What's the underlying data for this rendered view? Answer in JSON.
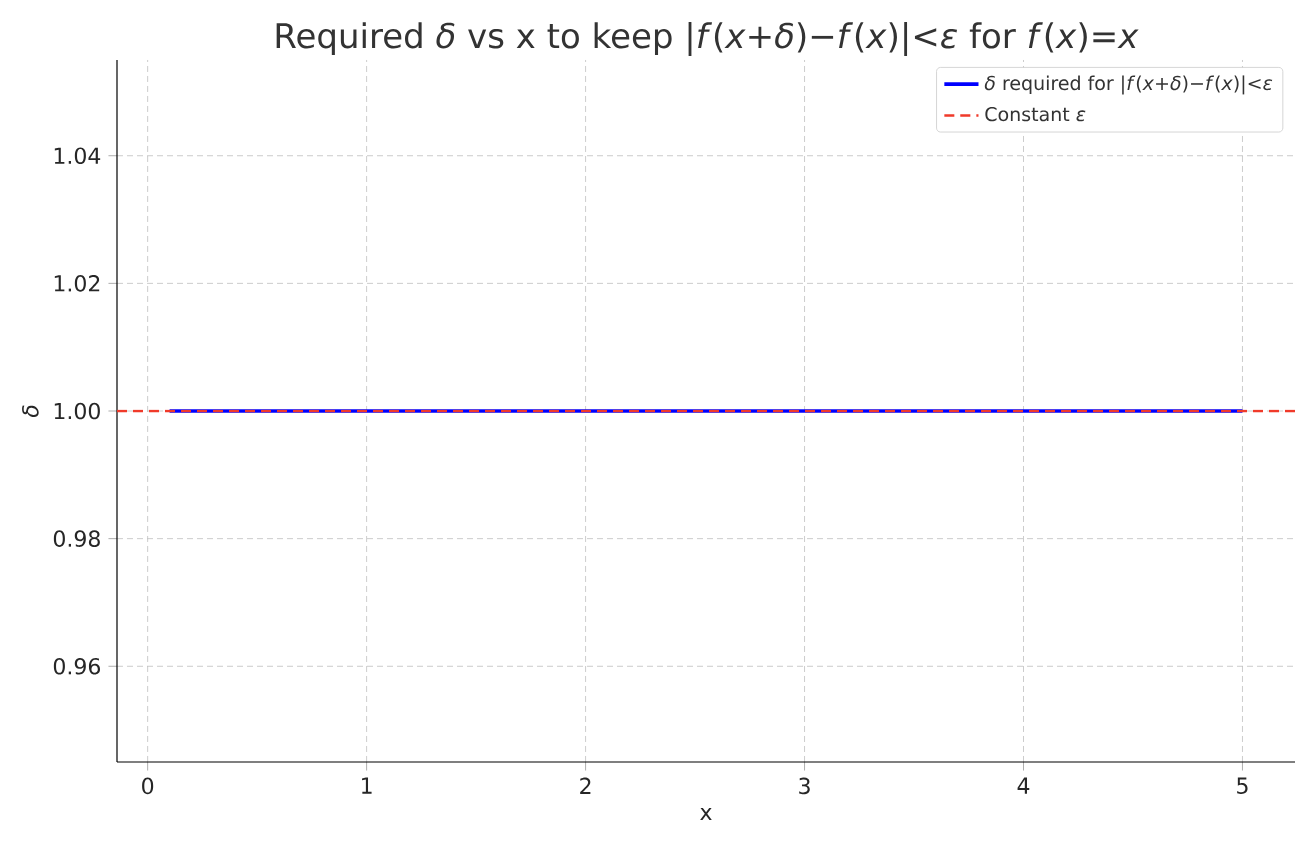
{
  "chart_data": {
    "type": "line",
    "title": "Required *δ* vs x to keep |*f*(*x*+*δ*)−*f*(*x*)|<*ε* for *f*(*x*)=*x*",
    "xlabel": "x",
    "ylabel": "*δ*",
    "x": [
      0.1,
      5
    ],
    "series": [
      {
        "name": "*δ* required for |*f*(*x*+*δ*)−*f*(*x*)|<*ε*",
        "color": "#0000ff",
        "values": [
          1,
          1
        ]
      }
    ],
    "ref_lines": [
      {
        "axis": "y",
        "value": 1,
        "label": "Constant *ε*",
        "color": "#f03a2a",
        "line_style": "dashed"
      }
    ],
    "xlim": [
      -0.14,
      5.24
    ],
    "ylim": [
      0.945,
      1.055
    ],
    "xticks": [
      0,
      1,
      2,
      3,
      4,
      5
    ],
    "yticks": [
      0.96,
      0.98,
      {
        "value": 1,
        "label": "1.00"
      },
      1.02,
      1.04
    ],
    "grid": true,
    "legend": "top right",
    "line_style": "solid",
    "marker": "none"
  }
}
